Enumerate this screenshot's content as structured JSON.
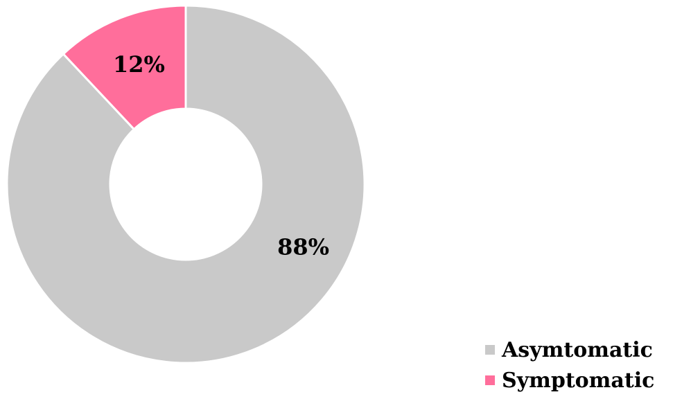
{
  "chart_data": {
    "type": "pie",
    "variant": "donut",
    "categories": [
      "Asymtomatic",
      "Symptomatic"
    ],
    "values": [
      88,
      12
    ],
    "data_labels": [
      "88%",
      "12%"
    ],
    "colors": [
      "#c9c9c9",
      "#ff6e9b"
    ],
    "title": "",
    "legend_placement": "bottom-right"
  },
  "legend": {
    "items": [
      {
        "label": "Asymtomatic",
        "color": "#c9c9c9"
      },
      {
        "label": "Symptomatic",
        "color": "#ff6e9b"
      }
    ]
  }
}
